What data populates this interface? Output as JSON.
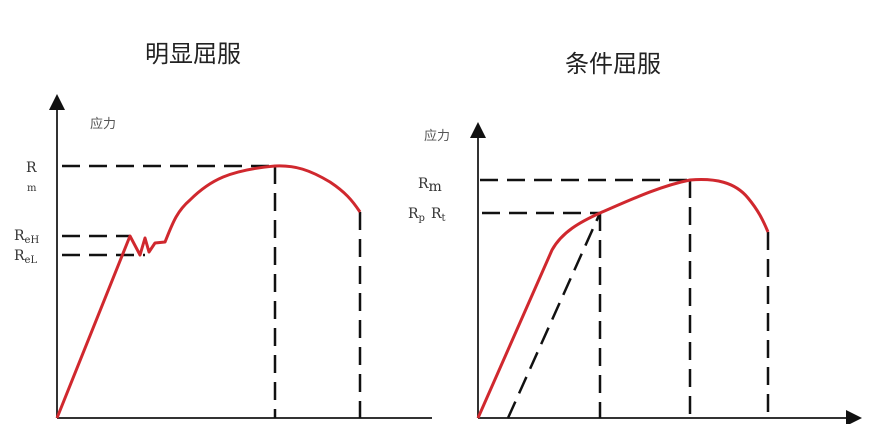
{
  "left": {
    "title": "明显屈服",
    "y_axis_label": "应力",
    "labels": {
      "rm_main": "R",
      "rm_sub": "m",
      "reh_main": "R",
      "reh_sub": "eH",
      "rel_main": "R",
      "rel_sub": "eL"
    }
  },
  "right": {
    "title": "条件屈服",
    "y_axis_label": "应力",
    "labels": {
      "rm_main": "R",
      "rm_sub": "m",
      "rp_main": "R",
      "rp_sub": "p",
      "rt_main": "R",
      "rt_sub": "t"
    }
  },
  "colors": {
    "curve": "#d0282e",
    "lines": "#111111"
  }
}
